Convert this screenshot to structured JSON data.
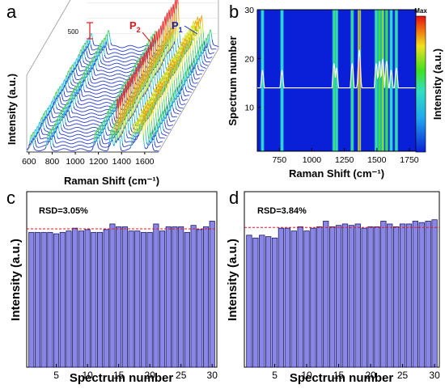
{
  "panels": {
    "a": {
      "label": "a"
    },
    "b": {
      "label": "b"
    },
    "c": {
      "label": "c"
    },
    "d": {
      "label": "d"
    }
  },
  "chart_data": [
    {
      "panel": "a",
      "type": "line",
      "subtype": "3d-waterfall",
      "xlabel": "Raman Shift (cm⁻¹)",
      "ylabel": "Intensity (a.u.)",
      "xticks": [
        "600",
        "800",
        "1000",
        "1200",
        "1400",
        "1600"
      ],
      "scale_bar": "500",
      "peak_labels": [
        {
          "text": "P",
          "sub": "2",
          "color": "#e8141b"
        },
        {
          "text": "P",
          "sub": "1",
          "color": "#1428c8"
        }
      ],
      "spectra_count": 30,
      "peaks_cm1": [
        620,
        770,
        1175,
        1310,
        1365,
        1505,
        1540,
        1575,
        1650
      ],
      "peak_heights": [
        0.25,
        0.3,
        0.3,
        0.35,
        0.9,
        0.45,
        0.5,
        0.55,
        0.3
      ]
    },
    {
      "panel": "b",
      "type": "heatmap",
      "xlabel": "Raman Shift (cm⁻¹)",
      "ylabel": "Spectrum number",
      "colorbar_label": "Intensity (a.u.)",
      "colorbar_max": "Max",
      "xticks": [
        "750",
        "1000",
        "1250",
        "1500",
        "1750"
      ],
      "yticks": [
        "10",
        "20",
        "30"
      ],
      "xlim": [
        580,
        1800
      ],
      "ylim": [
        1,
        30
      ],
      "bands": [
        {
          "x": 620,
          "level": 0.55
        },
        {
          "x": 770,
          "level": 0.55
        },
        {
          "x": 1170,
          "level": 0.7
        },
        {
          "x": 1190,
          "level": 0.6
        },
        {
          "x": 1310,
          "level": 0.7
        },
        {
          "x": 1365,
          "level": 1.0
        },
        {
          "x": 1495,
          "level": 0.7
        },
        {
          "x": 1520,
          "level": 0.75
        },
        {
          "x": 1545,
          "level": 0.8
        },
        {
          "x": 1575,
          "level": 0.75
        },
        {
          "x": 1610,
          "level": 0.55
        },
        {
          "x": 1650,
          "level": 0.6
        }
      ]
    },
    {
      "panel": "c",
      "type": "bar",
      "xlabel": "Spectrum number",
      "ylabel": "Intensity (a.u.)",
      "annotation": "RSD=3.05%",
      "xticks": [
        "5",
        "10",
        "15",
        "20",
        "25",
        "30"
      ],
      "categories": [
        1,
        2,
        3,
        4,
        5,
        6,
        7,
        8,
        9,
        10,
        11,
        12,
        13,
        14,
        15,
        16,
        17,
        18,
        19,
        20,
        21,
        22,
        23,
        24,
        25,
        26,
        27,
        28,
        29,
        30
      ],
      "values": [
        0.96,
        0.96,
        0.96,
        0.96,
        0.95,
        0.96,
        0.97,
        0.99,
        0.97,
        0.98,
        0.96,
        0.96,
        0.98,
        1.02,
        1.0,
        1.0,
        0.97,
        0.97,
        0.96,
        0.96,
        1.02,
        0.97,
        1.0,
        1.0,
        1.0,
        0.96,
        1.01,
        0.98,
        1.0,
        1.04
      ],
      "mean": 0.985,
      "ylim": [
        0,
        1.25
      ]
    },
    {
      "panel": "d",
      "type": "bar",
      "xlabel": "Spectrum number",
      "ylabel": "Intensity (a.u.)",
      "annotation": "RSD=3.84%",
      "xticks": [
        "5",
        "10",
        "15",
        "20",
        "25",
        "30"
      ],
      "categories": [
        1,
        2,
        3,
        4,
        5,
        6,
        7,
        8,
        9,
        10,
        11,
        12,
        13,
        14,
        15,
        16,
        17,
        18,
        19,
        20,
        21,
        22,
        23,
        24,
        25,
        26,
        27,
        28,
        29,
        30
      ],
      "values": [
        0.94,
        0.92,
        0.94,
        0.93,
        0.92,
        0.99,
        0.99,
        0.97,
        1.0,
        0.97,
        0.99,
        1.0,
        1.04,
        1.0,
        1.01,
        1.02,
        1.01,
        1.02,
        0.99,
        1.0,
        1.0,
        1.04,
        1.02,
        1.0,
        1.02,
        1.02,
        1.04,
        1.03,
        1.04,
        1.05
      ],
      "mean": 0.995,
      "ylim": [
        0,
        1.25
      ]
    }
  ]
}
